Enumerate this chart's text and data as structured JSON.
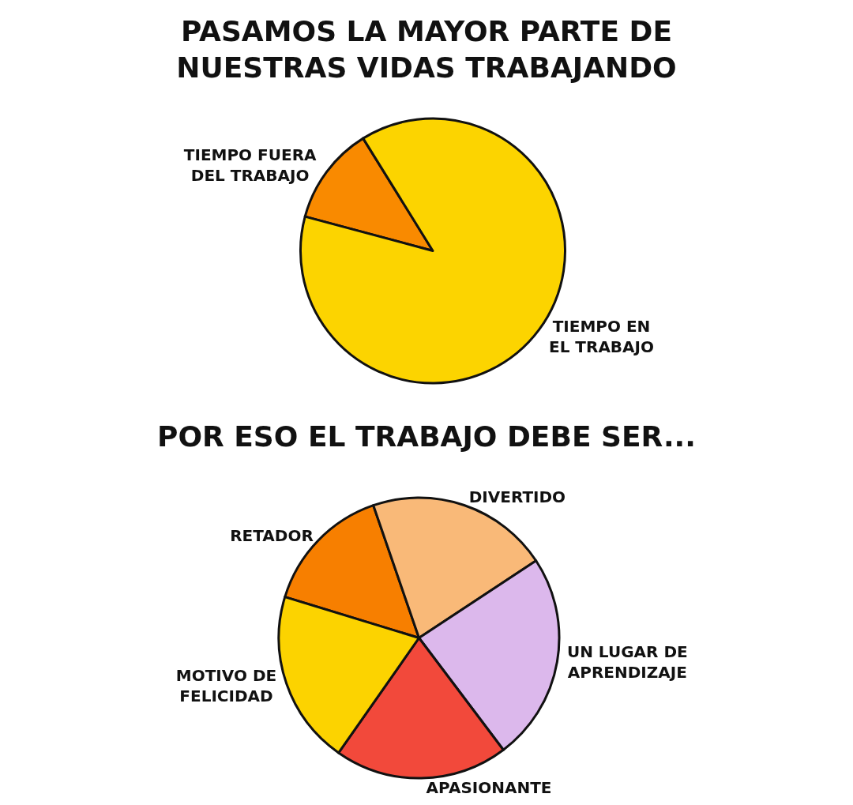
{
  "chart_data": [
    {
      "type": "pie",
      "title": "PASAMOS LA MAYOR PARTE DE NUESTRAS VIDAS TRABAJANDO",
      "categories": [
        "TIEMPO FUERA DEL TRABAJO",
        "TIEMPO EN EL TRABAJO"
      ],
      "values": [
        12,
        88
      ],
      "colors": [
        "#f98a00",
        "#fcd400"
      ],
      "legend": false
    },
    {
      "type": "pie",
      "title": "POR ESO EL TRABAJO DEBE SER...",
      "categories": [
        "RETADOR",
        "DIVERTIDO",
        "UN LUGAR DE APRENDIZAJE",
        "APASIONANTE",
        "MOTIVO DE FELICIDAD"
      ],
      "values": [
        15,
        21,
        24,
        20,
        20
      ],
      "colors": [
        "#f77f00",
        "#f9b978",
        "#dcb8ec",
        "#f2493b",
        "#fcd300"
      ],
      "legend": false
    }
  ]
}
